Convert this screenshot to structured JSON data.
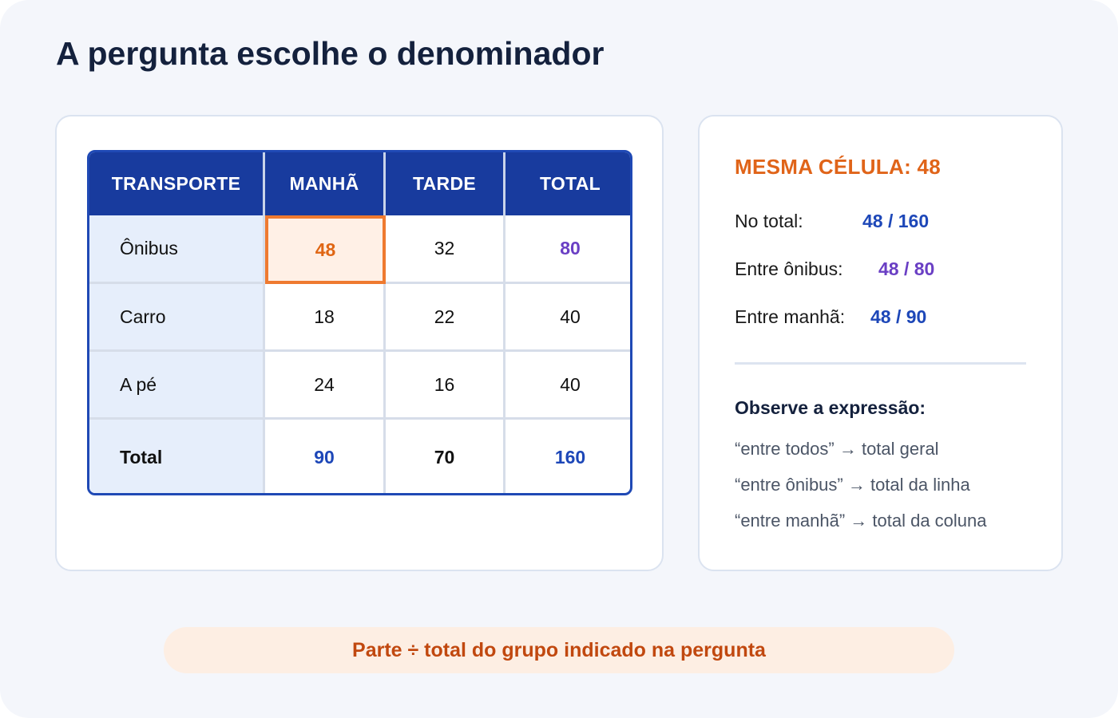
{
  "title": "A pergunta escolhe o denominador",
  "table": {
    "headers": [
      "TRANSPORTE",
      "MANHÃ",
      "TARDE",
      "TOTAL"
    ],
    "rows": [
      [
        "Ônibus",
        "48",
        "32",
        "80"
      ],
      [
        "Carro",
        "18",
        "22",
        "40"
      ],
      [
        "A pé",
        "24",
        "16",
        "40"
      ],
      [
        "Total",
        "90",
        "70",
        "160"
      ]
    ]
  },
  "info": {
    "heading": "MESMA CÉLULA: 48",
    "ratios": [
      {
        "label": "No total:",
        "value": "48 / 160"
      },
      {
        "label": "Entre ônibus:",
        "value": "48 / 80"
      },
      {
        "label": "Entre manhã:",
        "value": "48 / 90"
      }
    ],
    "observe_title": "Observe a expressão:",
    "rules": [
      "“entre todos” → total geral",
      "“entre ônibus” → total da linha",
      "“entre manhã” → total da coluna"
    ]
  },
  "banner": "Parte ÷ total do grupo indicado na pergunta",
  "colors": {
    "header_blue": "#183b9e",
    "accent_orange": "#e06614",
    "value_blue": "#1d47b8",
    "value_purple": "#6a3fc4"
  }
}
